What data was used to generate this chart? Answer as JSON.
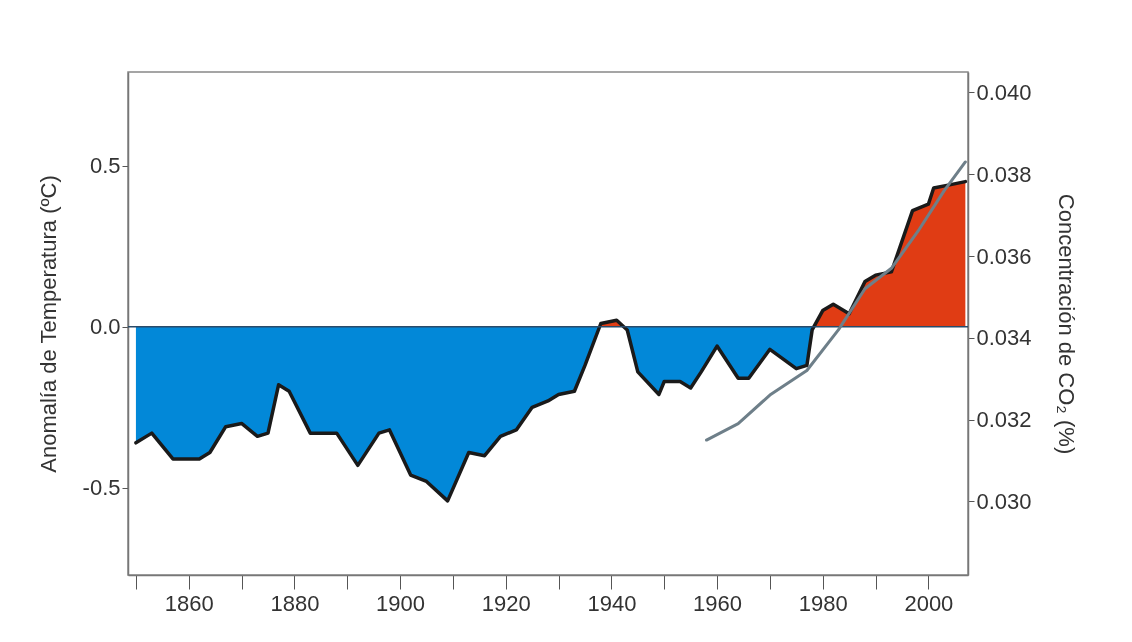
{
  "chart_data": {
    "type": "area",
    "ylabel": "Anomalía de Temperatura (ºC)",
    "y2label": "Concentración de CO₂ (%)",
    "x": [
      1850,
      1853,
      1857,
      1862,
      1864,
      1867,
      1870,
      1873,
      1875,
      1877,
      1879,
      1883,
      1888,
      1892,
      1896,
      1898,
      1902,
      1905,
      1909,
      1913,
      1916,
      1919,
      1922,
      1925,
      1928,
      1930,
      1933,
      1935,
      1938,
      1941,
      1943,
      1945,
      1949,
      1950,
      1953,
      1955,
      1957,
      1960,
      1964,
      1966,
      1970,
      1975,
      1977,
      1978,
      1980,
      1982,
      1985,
      1988,
      1990,
      1993,
      1997,
      2000,
      2001,
      2004,
      2007
    ],
    "series": [
      {
        "color": "#1a1a1a",
        "colors": [
          "#0288d8",
          "#0288d8",
          "#0288d8",
          "#0288d8",
          "#0288d8",
          "#0288d8",
          "#0288d8",
          "#0288d8",
          "#0288d8",
          "#0288d8",
          "#0288d8",
          "#0288d8",
          "#0288d8",
          "#0288d8",
          "#0288d8",
          "#0288d8",
          "#0288d8",
          "#0288d8",
          "#0288d8",
          "#0288d8",
          "#0288d8",
          "#0288d8",
          "#0288d8",
          "#0288d8",
          "#0288d8",
          "#0288d8",
          "#0288d8",
          "#0288d8",
          "#e03c14",
          "#e03c14",
          "#0288d8",
          "#0288d8",
          "#0288d8",
          "#0288d8",
          "#0288d8",
          "#0288d8",
          "#0288d8",
          "#0288d8",
          "#0288d8",
          "#0288d8",
          "#0288d8",
          "#0288d8",
          "#0288d8",
          "#0288d8",
          "#e03c14",
          "#e03c14",
          "#e03c14",
          "#e03c14",
          "#e03c14",
          "#e03c14",
          "#e03c14",
          "#e03c14",
          "#e03c14",
          "#e03c14",
          "#e03c14"
        ],
        "values": [
          -0.36,
          -0.33,
          -0.41,
          -0.41,
          -0.39,
          -0.31,
          -0.3,
          -0.34,
          -0.33,
          -0.18,
          -0.2,
          -0.33,
          -0.33,
          -0.43,
          -0.33,
          -0.32,
          -0.46,
          -0.48,
          -0.54,
          -0.39,
          -0.4,
          -0.34,
          -0.32,
          -0.25,
          -0.23,
          -0.21,
          -0.2,
          -0.12,
          0.01,
          0.02,
          -0.01,
          -0.14,
          -0.21,
          -0.17,
          -0.17,
          -0.19,
          -0.14,
          -0.06,
          -0.16,
          -0.16,
          -0.07,
          -0.13,
          -0.12,
          -0.01,
          0.05,
          0.07,
          0.04,
          0.14,
          0.16,
          0.17,
          0.36,
          0.38,
          0.43,
          0.44,
          0.45
        ]
      },
      {
        "type": "line",
        "axis": "y2",
        "color": "#6e7f89",
        "x": [
          1958,
          1964,
          1970,
          1977,
          1983,
          1988,
          1993,
          1998,
          2003,
          2007
        ],
        "values": [
          0.0315,
          0.0319,
          0.0326,
          0.0332,
          0.0342,
          0.0352,
          0.0357,
          0.0366,
          0.0376,
          0.0383
        ]
      }
    ],
    "xlim": [
      1848.5,
      2007.5
    ],
    "xticks": [
      {
        "value": 1850,
        "label": null
      },
      1860,
      {
        "value": 1870,
        "label": null
      },
      1880,
      {
        "value": 1890,
        "label": null
      },
      1900,
      {
        "value": 1910,
        "label": null
      },
      1920,
      {
        "value": 1930,
        "label": null
      },
      1940,
      {
        "value": 1950,
        "label": null
      },
      1960,
      {
        "value": 1970,
        "label": null
      },
      1980,
      {
        "value": 1990,
        "label": null
      },
      2000
    ],
    "ylim": [
      -0.77,
      0.79
    ],
    "yticks": [
      -0.5,
      {
        "value": 0,
        "label": "0.0"
      },
      0.5
    ],
    "y2lim": [
      0.0282,
      0.0405
    ],
    "y2ticks": [
      {
        "value": 0.03,
        "label": "0.030"
      },
      0.032,
      0.034,
      0.036,
      0.038,
      {
        "value": 0.04,
        "label": "0.040"
      }
    ],
    "ref_lines": [
      {
        "axis": "y",
        "value": 0,
        "color": "#2a4b6a"
      }
    ],
    "grid": false
  }
}
